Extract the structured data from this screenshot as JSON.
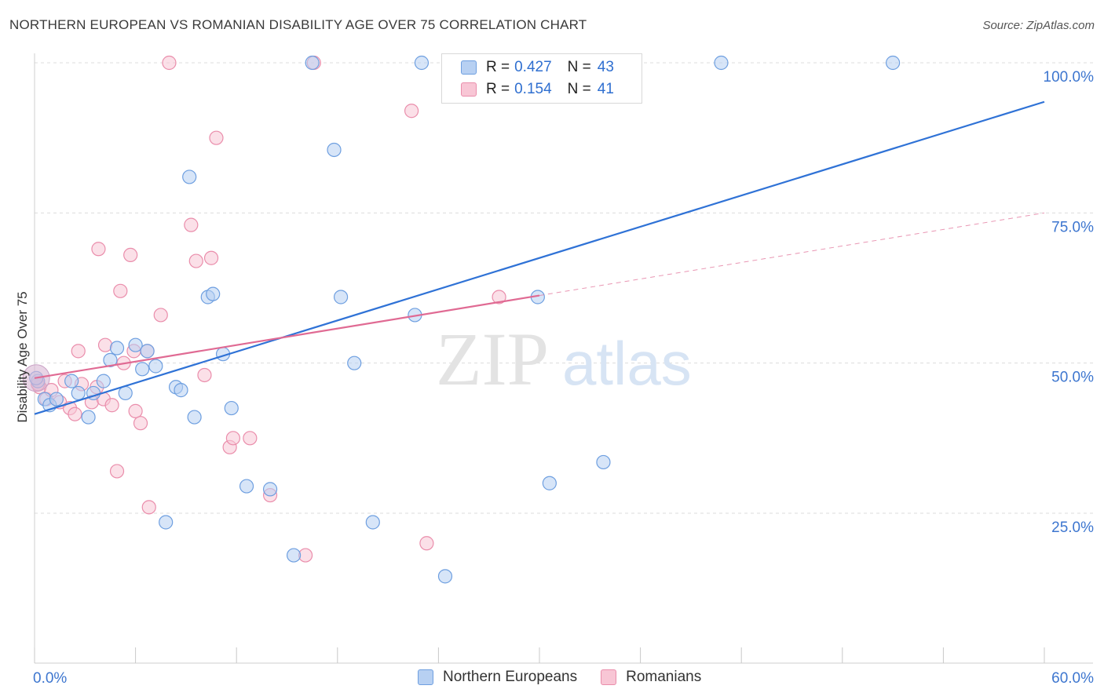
{
  "title": "NORTHERN EUROPEAN VS ROMANIAN DISABILITY AGE OVER 75 CORRELATION CHART",
  "source": "Source: ZipAtlas.com",
  "colors": {
    "blue_fill": "#b7d0f2",
    "blue_stroke": "#6e9fe0",
    "blue_line": "#2f72d6",
    "pink_fill": "#f8c6d5",
    "pink_stroke": "#ea8dab",
    "pink_line": "#e06a93",
    "tick_label": "#3d76cf",
    "grid": "#dcdcdc"
  },
  "legend": {
    "rows": [
      {
        "r_label": "R =",
        "r_value": "0.427",
        "n_label": "N =",
        "n_value": "43"
      },
      {
        "r_label": "R =",
        "r_value": "0.154",
        "n_label": "N =",
        "n_value": "41"
      }
    ]
  },
  "bottom_legend": [
    "Northern Europeans",
    "Romanians"
  ],
  "chart_data": {
    "type": "scatter",
    "title": "NORTHERN EUROPEAN VS ROMANIAN DISABILITY AGE OVER 75 CORRELATION CHART",
    "xlabel": "",
    "ylabel": "Disability Age Over 75",
    "xlim": [
      0,
      60
    ],
    "ylim": [
      0,
      105
    ],
    "x_tick_labels": [
      "0.0%",
      "60.0%"
    ],
    "y_ticks": [
      25,
      50,
      75,
      100
    ],
    "y_tick_labels": [
      "25.0%",
      "50.0%",
      "75.0%",
      "100.0%"
    ],
    "grid": true,
    "legend_position": "top-center",
    "watermark": "ZIPatlas",
    "series": [
      {
        "name": "Northern Europeans",
        "r": 0.427,
        "n": 43,
        "trend": {
          "x0": 0,
          "y0": 41.5,
          "x1": 60,
          "y1": 93.5,
          "dashed_from": null
        },
        "points": [
          [
            0.2,
            47
          ],
          [
            0.6,
            44
          ],
          [
            0.9,
            43
          ],
          [
            1.3,
            44
          ],
          [
            2.2,
            47
          ],
          [
            2.6,
            45
          ],
          [
            3.2,
            41
          ],
          [
            3.5,
            45
          ],
          [
            4.1,
            47
          ],
          [
            4.5,
            50.5
          ],
          [
            4.9,
            52.5
          ],
          [
            5.4,
            45
          ],
          [
            6.0,
            53
          ],
          [
            6.4,
            49
          ],
          [
            6.7,
            52
          ],
          [
            7.2,
            49.5
          ],
          [
            7.8,
            23.5
          ],
          [
            8.4,
            46
          ],
          [
            8.7,
            45.5
          ],
          [
            9.2,
            81
          ],
          [
            9.5,
            41
          ],
          [
            10.3,
            61
          ],
          [
            10.6,
            61.5
          ],
          [
            11.2,
            51.5
          ],
          [
            11.7,
            42.5
          ],
          [
            12.6,
            29.5
          ],
          [
            14.0,
            29
          ],
          [
            15.4,
            18
          ],
          [
            16.5,
            100
          ],
          [
            17.8,
            85.5
          ],
          [
            18.2,
            61
          ],
          [
            19.0,
            50
          ],
          [
            20.1,
            23.5
          ],
          [
            22.6,
            58
          ],
          [
            23.0,
            100
          ],
          [
            24.4,
            14.5
          ],
          [
            27.0,
            100
          ],
          [
            29.9,
            61
          ],
          [
            30.6,
            30
          ],
          [
            33.8,
            33.5
          ],
          [
            40.8,
            100
          ],
          [
            51.0,
            100
          ],
          [
            0.1,
            47.5
          ]
        ]
      },
      {
        "name": "Romanians",
        "r": 0.154,
        "n": 41,
        "trend": {
          "x0": 0,
          "y0": 47.5,
          "x1": 60,
          "y1": 75,
          "dashed_from": 30
        },
        "points": [
          [
            0.3,
            46
          ],
          [
            0.7,
            44
          ],
          [
            1.0,
            45.5
          ],
          [
            1.5,
            43.5
          ],
          [
            1.8,
            47
          ],
          [
            2.1,
            42.5
          ],
          [
            2.4,
            41.5
          ],
          [
            2.6,
            52
          ],
          [
            2.8,
            46.5
          ],
          [
            3.4,
            43.5
          ],
          [
            3.7,
            46
          ],
          [
            3.8,
            69
          ],
          [
            4.1,
            44
          ],
          [
            4.2,
            53
          ],
          [
            4.6,
            43
          ],
          [
            4.9,
            32
          ],
          [
            5.1,
            62
          ],
          [
            5.3,
            50
          ],
          [
            5.7,
            68
          ],
          [
            5.9,
            52
          ],
          [
            6.0,
            42
          ],
          [
            6.3,
            40
          ],
          [
            6.7,
            52
          ],
          [
            6.8,
            26
          ],
          [
            7.5,
            58
          ],
          [
            8.0,
            100
          ],
          [
            9.3,
            73
          ],
          [
            10.1,
            48
          ],
          [
            10.5,
            67.5
          ],
          [
            10.8,
            87.5
          ],
          [
            11.6,
            36
          ],
          [
            11.8,
            37.5
          ],
          [
            12.8,
            37.5
          ],
          [
            14.0,
            28
          ],
          [
            16.1,
            18
          ],
          [
            16.6,
            100
          ],
          [
            22.4,
            92
          ],
          [
            23.3,
            20
          ],
          [
            27.6,
            61
          ],
          [
            0.2,
            46.5
          ],
          [
            9.6,
            67
          ]
        ]
      }
    ]
  }
}
